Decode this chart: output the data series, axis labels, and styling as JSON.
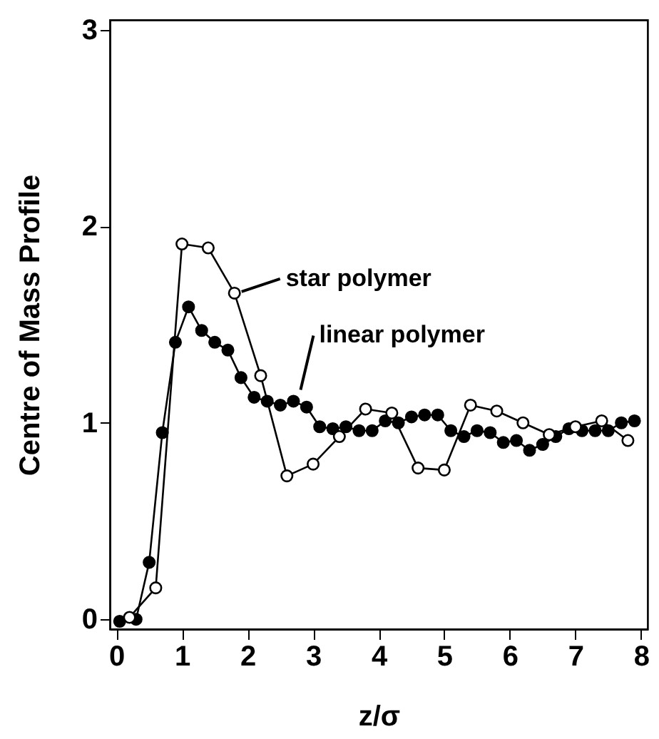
{
  "chart_data": {
    "type": "line",
    "xlabel": "z/σ",
    "ylabel": "Centre of Mass Profile",
    "xlim": [
      -0.1,
      8.1
    ],
    "ylim": [
      -0.05,
      3.05
    ],
    "xticks": [
      0,
      1,
      2,
      3,
      4,
      5,
      6,
      7,
      8
    ],
    "yticks": [
      0,
      1,
      2,
      3
    ],
    "grid": false,
    "marker": "circle",
    "line_style": "solid",
    "series": [
      {
        "name": "star polymer",
        "color": "#000000",
        "x": [
          0.2,
          0.6,
          1.0,
          1.4,
          1.8,
          2.2,
          2.6,
          3.0,
          3.4,
          3.8,
          4.2,
          4.6,
          5.0,
          5.4,
          5.8,
          6.2,
          6.6,
          7.0,
          7.4,
          7.8
        ],
        "values": [
          0.01,
          0.16,
          1.91,
          1.89,
          1.66,
          1.24,
          0.73,
          0.79,
          0.93,
          1.07,
          1.05,
          0.77,
          0.76,
          1.09,
          1.06,
          1.0,
          0.94,
          0.98,
          1.01,
          0.91
        ]
      },
      {
        "name": "linear polymer",
        "color": "#000000",
        "x": [
          0.05,
          0.3,
          0.5,
          0.7,
          0.9,
          1.1,
          1.3,
          1.5,
          1.7,
          1.9,
          2.1,
          2.3,
          2.5,
          2.7,
          2.9,
          3.1,
          3.3,
          3.5,
          3.7,
          3.9,
          4.1,
          4.3,
          4.5,
          4.7,
          4.9,
          5.1,
          5.3,
          5.5,
          5.7,
          5.9,
          6.1,
          6.3,
          6.5,
          6.7,
          6.9,
          7.1,
          7.3,
          7.5,
          7.7,
          7.9
        ],
        "values": [
          -0.01,
          0.0,
          0.29,
          0.95,
          1.41,
          1.59,
          1.47,
          1.41,
          1.37,
          1.23,
          1.13,
          1.11,
          1.09,
          1.11,
          1.08,
          0.98,
          0.97,
          0.98,
          0.96,
          0.96,
          1.01,
          1.0,
          1.03,
          1.04,
          1.04,
          0.96,
          0.93,
          0.96,
          0.95,
          0.9,
          0.91,
          0.86,
          0.89,
          0.93,
          0.97,
          0.96,
          0.96,
          0.96,
          1.0,
          1.01
        ]
      }
    ]
  }
}
